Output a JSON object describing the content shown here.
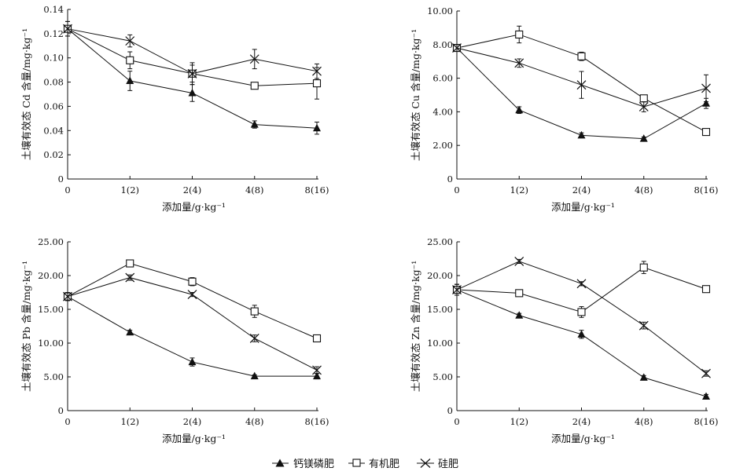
{
  "figure": {
    "legend": {
      "items": [
        {
          "label": "钙镁磷肥",
          "marker": "triangle-filled"
        },
        {
          "label": "有机肥",
          "marker": "square-open"
        },
        {
          "label": "硅肥",
          "marker": "cross-x"
        }
      ]
    }
  },
  "chart_data": [
    {
      "type": "line",
      "xlabel": "添加量/g·kg⁻¹",
      "ylabel": "土壤有效态 Cd 含量/mg·kg⁻¹",
      "categories": [
        "0",
        "1(2)",
        "2(4)",
        "4(8)",
        "8(16)"
      ],
      "ylim": [
        0,
        0.14
      ],
      "yticks": [
        "0",
        "0.02",
        "0.04",
        "0.06",
        "0.08",
        "0.10",
        "0.12",
        "0.14"
      ],
      "grid": false,
      "series": [
        {
          "name": "钙镁磷肥",
          "marker": "triangle-filled",
          "values": [
            0.124,
            0.081,
            0.071,
            0.045,
            0.042
          ],
          "errors": [
            0.006,
            0.008,
            0.007,
            0.003,
            0.005
          ]
        },
        {
          "name": "有机肥",
          "marker": "square-open",
          "values": [
            0.124,
            0.098,
            0.087,
            0.077,
            0.079
          ],
          "errors": [
            0.006,
            0.007,
            0.007,
            0.002,
            0.013
          ]
        },
        {
          "name": "硅肥",
          "marker": "cross-x",
          "values": [
            0.124,
            0.114,
            0.087,
            0.099,
            0.089
          ],
          "errors": [
            0.006,
            0.005,
            0.009,
            0.008,
            0.006
          ]
        }
      ]
    },
    {
      "type": "line",
      "xlabel": "添加量/g·kg⁻¹",
      "ylabel": "土壤有效态 Cu 含量/mg·kg⁻¹",
      "categories": [
        "0",
        "1(2)",
        "2(4)",
        "4(8)",
        "8(16)"
      ],
      "ylim": [
        0,
        10
      ],
      "yticks": [
        "0",
        "2.00",
        "4.00",
        "6.00",
        "8.00",
        "10.00"
      ],
      "grid": false,
      "series": [
        {
          "name": "钙镁磷肥",
          "marker": "triangle-filled",
          "values": [
            7.8,
            4.1,
            2.6,
            2.4,
            4.5
          ],
          "errors": [
            0.2,
            0.2,
            0.15,
            0.1,
            0.3
          ]
        },
        {
          "name": "有机肥",
          "marker": "square-open",
          "values": [
            7.8,
            8.6,
            7.3,
            4.8,
            2.8
          ],
          "errors": [
            0.2,
            0.5,
            0.25,
            0.2,
            0.1
          ]
        },
        {
          "name": "硅肥",
          "marker": "cross-x",
          "values": [
            7.8,
            6.9,
            5.6,
            4.3,
            5.4
          ],
          "errors": [
            0.2,
            0.25,
            0.8,
            0.3,
            0.8
          ]
        }
      ]
    },
    {
      "type": "line",
      "xlabel": "添加量/g·kg⁻¹",
      "ylabel": "土壤有效态 Pb 含量/mg·kg⁻¹",
      "categories": [
        "0",
        "1(2)",
        "2(4)",
        "4(8)",
        "8(16)"
      ],
      "ylim": [
        0,
        25
      ],
      "yticks": [
        "0",
        "5.00",
        "10.00",
        "15.00",
        "20.00",
        "25.00"
      ],
      "grid": false,
      "series": [
        {
          "name": "钙镁磷肥",
          "marker": "triangle-filled",
          "values": [
            16.9,
            11.6,
            7.2,
            5.1,
            5.1
          ],
          "errors": [
            0.6,
            0.3,
            0.6,
            0.2,
            0.4
          ]
        },
        {
          "name": "有机肥",
          "marker": "square-open",
          "values": [
            16.9,
            21.8,
            19.1,
            14.7,
            10.7
          ],
          "errors": [
            0.6,
            0.3,
            0.6,
            0.9,
            0.3
          ]
        },
        {
          "name": "硅肥",
          "marker": "cross-x",
          "values": [
            16.9,
            19.7,
            17.2,
            10.7,
            6.0
          ],
          "errors": [
            0.6,
            0.4,
            0.3,
            0.5,
            0.5
          ]
        }
      ]
    },
    {
      "type": "line",
      "xlabel": "添加量/g·kg⁻¹",
      "ylabel": "土壤有效态 Zn 含量/mg·kg⁻¹",
      "categories": [
        "0",
        "1(2)",
        "2(4)",
        "4(8)",
        "8(16)"
      ],
      "ylim": [
        0,
        25
      ],
      "yticks": [
        "0",
        "5.00",
        "10.00",
        "15.00",
        "20.00",
        "25.00"
      ],
      "grid": false,
      "series": [
        {
          "name": "钙镁磷肥",
          "marker": "triangle-filled",
          "values": [
            17.9,
            14.1,
            11.3,
            4.9,
            2.1
          ],
          "errors": [
            0.8,
            0.3,
            0.6,
            0.3,
            0.3
          ]
        },
        {
          "name": "有机肥",
          "marker": "square-open",
          "values": [
            17.9,
            17.4,
            14.6,
            21.2,
            18.0
          ],
          "errors": [
            0.8,
            0.4,
            0.8,
            0.9,
            0.3
          ]
        },
        {
          "name": "硅肥",
          "marker": "cross-x",
          "values": [
            17.9,
            22.1,
            18.8,
            12.6,
            5.5
          ],
          "errors": [
            0.8,
            0.3,
            0.3,
            0.5,
            0.4
          ]
        }
      ]
    }
  ]
}
